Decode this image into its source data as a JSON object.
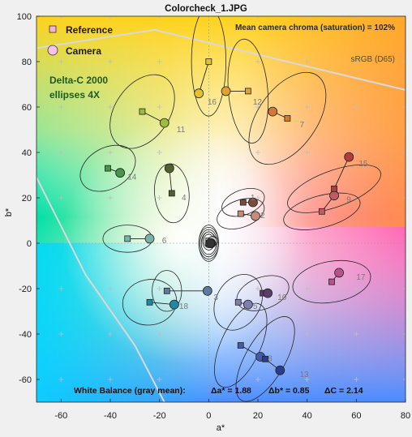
{
  "colors": {
    "reference_fill": "#f5b3d9",
    "camera_fill": "#f7c3e6",
    "gamut_line": "#d9d9d9",
    "text_dark": "#1a1a1a",
    "point_label": "#7a7a7a",
    "dark_green_text": "#1f5a22"
  },
  "chart_data": {
    "type": "scatter",
    "title": "Colorcheck_1.JPG",
    "xlabel": "a*",
    "ylabel": "b*",
    "xlim": [
      -70,
      80
    ],
    "ylim": [
      -70,
      100
    ],
    "xticks": [
      -60,
      -40,
      -20,
      0,
      20,
      40,
      60,
      80
    ],
    "yticks": [
      -60,
      -40,
      -20,
      0,
      20,
      40,
      60,
      80,
      100
    ],
    "grid": true,
    "legend": {
      "placement": "top-left",
      "reference": "Reference",
      "camera": "Camera"
    },
    "annotations": {
      "ellipse_note": "Delta-C 2000 ellipses 4X",
      "chroma": "Mean camera chroma (saturation) = 102%",
      "gamut": "sRGB (D65)",
      "wb_label": "White Balance (gray mean):",
      "wb_da": "Δa* = 1.88",
      "wb_db": "Δb* = 0.85",
      "wb_dc": "ΔC = 2.14"
    },
    "gamut_boundary": [
      [
        -70,
        86
      ],
      [
        -22,
        94
      ],
      [
        82,
        67
      ]
    ],
    "gamut_boundary_lower": [
      [
        -70,
        29
      ],
      [
        -50,
        -14
      ],
      [
        -30,
        -45
      ],
      [
        -18,
        -70
      ]
    ],
    "patches": [
      {
        "id": "1",
        "ref": [
          14,
          18
        ],
        "cam": [
          18,
          18
        ],
        "color": "#7a4b3c",
        "ellipse": {
          "rx": 9,
          "ry": 5.5,
          "rot": -20
        }
      },
      {
        "id": "2",
        "ref": [
          13,
          13
        ],
        "cam": [
          19,
          12
        ],
        "color": "#c48c79",
        "ellipse": {
          "rx": 10,
          "ry": 6,
          "rot": -20
        }
      },
      {
        "id": "3",
        "ref": [
          -17,
          -21
        ],
        "cam": [
          -0.5,
          -21
        ],
        "color": "#5d7ba0",
        "ellipse": {
          "rx": 6,
          "ry": 9,
          "rot": 0
        }
      },
      {
        "id": "4",
        "ref": [
          -15,
          22
        ],
        "cam": [
          -16,
          33
        ],
        "color": "#525f2f",
        "ellipse": {
          "rx": 7,
          "ry": 13,
          "rot": -5
        }
      },
      {
        "id": "5",
        "ref": [
          12,
          -26
        ],
        "cam": [
          16,
          -27
        ],
        "color": "#7d7fb0",
        "ellipse": {
          "rx": 9,
          "ry": 13,
          "rot": 30
        }
      },
      {
        "id": "6",
        "ref": [
          -33,
          2
        ],
        "cam": [
          -24,
          2
        ],
        "color": "#7ab1a8",
        "ellipse": {
          "rx": 10,
          "ry": 6,
          "rot": 0
        }
      },
      {
        "id": "7",
        "ref": [
          32,
          55
        ],
        "cam": [
          26,
          58
        ],
        "color": "#d37a2e",
        "ellipse": {
          "rx": 12,
          "ry": 23,
          "rot": 35
        }
      },
      {
        "id": "8",
        "ref": [
          13,
          -45
        ],
        "cam": [
          21,
          -50
        ],
        "color": "#435aa6",
        "ellipse": {
          "rx": 8,
          "ry": 20,
          "rot": 25
        }
      },
      {
        "id": "9",
        "ref": [
          46,
          14
        ],
        "cam": [
          51,
          21
        ],
        "color": "#c15a63",
        "ellipse": {
          "rx": 16,
          "ry": 7,
          "rot": -15
        }
      },
      {
        "id": "10",
        "ref": [
          22,
          -22
        ],
        "cam": [
          24,
          -22
        ],
        "color": "#5c3d6a",
        "ellipse": {
          "rx": 11,
          "ry": 7,
          "rot": -20
        }
      },
      {
        "id": "11",
        "ref": [
          -27,
          58
        ],
        "cam": [
          -18,
          53
        ],
        "color": "#9dbb3d",
        "ellipse": {
          "rx": 11,
          "ry": 18,
          "rot": 35
        }
      },
      {
        "id": "12",
        "ref": [
          16,
          67
        ],
        "cam": [
          7,
          67
        ],
        "color": "#e1a12e",
        "ellipse": {
          "rx": 8,
          "ry": 23,
          "rot": -5
        }
      },
      {
        "id": "13",
        "ref": [
          23,
          -51
        ],
        "cam": [
          29,
          -56
        ],
        "color": "#2a3d8b",
        "ellipse": {
          "rx": 8,
          "ry": 21,
          "rot": 30
        }
      },
      {
        "id": "14",
        "ref": [
          -41,
          33
        ],
        "cam": [
          -36,
          31
        ],
        "color": "#47944b",
        "ellipse": {
          "rx": 12,
          "ry": 9,
          "rot": -30
        }
      },
      {
        "id": "15",
        "ref": [
          51,
          24
        ],
        "cam": [
          57,
          38
        ],
        "color": "#b23b3b",
        "ellipse": {
          "rx": 20,
          "ry": 8,
          "rot": -20
        }
      },
      {
        "id": "16",
        "ref": [
          0,
          80
        ],
        "cam": [
          -4,
          66
        ],
        "color": "#e4c32a",
        "ellipse": {
          "rx": 7,
          "ry": 24,
          "rot": 0
        }
      },
      {
        "id": "17",
        "ref": [
          50,
          -17
        ],
        "cam": [
          53,
          -13
        ],
        "color": "#b7528f",
        "ellipse": {
          "rx": 16,
          "ry": 9,
          "rot": -10
        }
      },
      {
        "id": "18",
        "ref": [
          -24,
          -26
        ],
        "cam": [
          -14,
          -27
        ],
        "color": "#1d89a4",
        "ellipse": {
          "rx": 11,
          "ry": 10,
          "rot": -10
        }
      },
      {
        "id": "19",
        "ref": [
          0,
          1
        ],
        "cam": [
          2,
          1
        ],
        "color": "#f2f2f2",
        "ellipse": {
          "rx": 2,
          "ry": 3,
          "rot": 0
        }
      },
      {
        "id": "20",
        "ref": [
          0,
          1
        ],
        "cam": [
          1.5,
          1
        ],
        "color": "#c8c8c8",
        "ellipse": {
          "rx": 2.5,
          "ry": 4,
          "rot": 0
        }
      },
      {
        "id": "21",
        "ref": [
          0,
          0
        ],
        "cam": [
          1,
          0
        ],
        "color": "#a0a0a0",
        "ellipse": {
          "rx": 3,
          "ry": 5,
          "rot": 0
        }
      },
      {
        "id": "22",
        "ref": [
          0,
          0
        ],
        "cam": [
          1,
          0
        ],
        "color": "#7a7a7a",
        "ellipse": {
          "rx": 3.5,
          "ry": 6,
          "rot": 0
        }
      },
      {
        "id": "23",
        "ref": [
          0,
          0
        ],
        "cam": [
          0.8,
          0
        ],
        "color": "#555555",
        "ellipse": {
          "rx": 4,
          "ry": 7,
          "rot": 0
        }
      },
      {
        "id": "24",
        "ref": [
          0,
          0
        ],
        "cam": [
          0.6,
          0
        ],
        "color": "#333333",
        "ellipse": {
          "rx": 4,
          "ry": 8,
          "rot": 0
        }
      }
    ],
    "label_pos": {
      "1": [
        17,
        19
      ],
      "2": [
        21,
        11
      ],
      "3": [
        2,
        -25
      ],
      "4": [
        -11,
        19
      ],
      "5": [
        18,
        -29
      ],
      "6": [
        -19,
        0
      ],
      "7": [
        37,
        51
      ],
      "8": [
        24,
        -52
      ],
      "9": [
        56,
        18
      ],
      "10": [
        28,
        -25
      ],
      "11": [
        -13,
        49
      ],
      "12": [
        18,
        61
      ],
      "13": [
        37,
        -59
      ],
      "14": [
        -33,
        28
      ],
      "15": [
        61,
        34
      ],
      "16": [
        -0.5,
        61
      ],
      "17": [
        60,
        -16
      ],
      "18": [
        -12,
        -29
      ]
    }
  }
}
